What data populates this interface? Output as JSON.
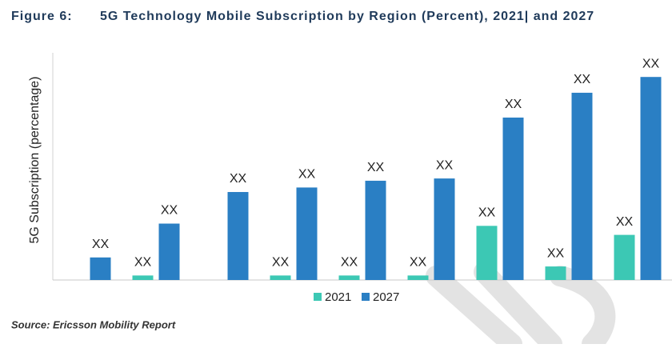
{
  "chart_data": {
    "type": "bar",
    "title": "5G Technology Mobile Subscription by Region (Percent), 2021| and 2027",
    "figure_label": "Figure 6:",
    "y_label": "5G Subscription (percentage)",
    "source": "Source: Ericsson Mobility Report",
    "categories": [
      null,
      null,
      null,
      null,
      null,
      null,
      null,
      null,
      null
    ],
    "ylim": [
      0,
      100
    ],
    "legend": "bottom",
    "series": [
      {
        "name": "2021",
        "color": "#3cc8b4",
        "values": [
          null,
          2,
          null,
          2,
          2,
          2,
          24,
          6,
          20
        ],
        "value_labels": [
          null,
          "XX",
          null,
          "XX",
          "XX",
          "XX",
          "XX",
          "XX",
          "XX"
        ]
      },
      {
        "name": "2027",
        "color": "#2a7fc4",
        "values": [
          10,
          25,
          39,
          41,
          44,
          45,
          72,
          83,
          90
        ],
        "value_labels": [
          "XX",
          "XX",
          "XX",
          "XX",
          "XX",
          "XX",
          "XX",
          "XX",
          "XX"
        ]
      }
    ]
  }
}
